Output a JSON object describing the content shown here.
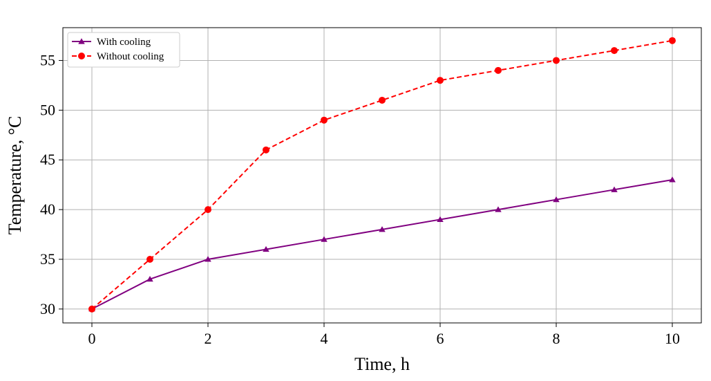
{
  "chart_data": {
    "type": "line",
    "title": "",
    "xlabel": "Time, h",
    "ylabel": "Temperature, °C",
    "xlim": [
      -0.5,
      10.5
    ],
    "ylim": [
      28.6,
      58.3
    ],
    "xticks": [
      0,
      2,
      4,
      6,
      8,
      10
    ],
    "yticks": [
      30,
      35,
      40,
      45,
      50,
      55
    ],
    "grid": true,
    "legend_position": "top-left",
    "x": [
      0,
      1,
      2,
      3,
      4,
      5,
      6,
      7,
      8,
      9,
      10
    ],
    "series": [
      {
        "name": "With cooling",
        "values": [
          30,
          33,
          35,
          36,
          37,
          38,
          39,
          40,
          41,
          42,
          43
        ],
        "color": "#800080",
        "line_style": "solid",
        "marker": "triangle"
      },
      {
        "name": "Without cooling",
        "values": [
          30,
          35,
          40,
          46,
          49,
          51,
          53,
          54,
          55,
          56,
          57
        ],
        "color": "#ff0000",
        "line_style": "dashed",
        "marker": "circle"
      }
    ]
  }
}
